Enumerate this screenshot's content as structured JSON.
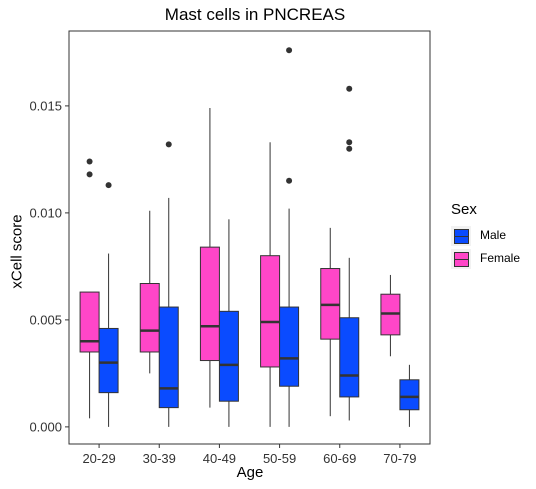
{
  "chart_data": {
    "type": "boxplot",
    "title": "Mast cells in PNCREAS",
    "xlabel": "Age",
    "ylabel": "xCell score",
    "categories": [
      "20-29",
      "30-39",
      "40-49",
      "50-59",
      "60-69",
      "70-79"
    ],
    "ylim": [
      -0.0008,
      0.0185
    ],
    "yticks": [
      0.0,
      0.005,
      0.01,
      0.015
    ],
    "ytick_labels": [
      "0.000",
      "0.005",
      "0.010",
      "0.015"
    ],
    "grid": false,
    "legend": {
      "title": "Sex",
      "placement": "right",
      "entries": [
        {
          "label": "Male",
          "color": "#0a4bff"
        },
        {
          "label": "Female",
          "color": "#ff46c8"
        }
      ]
    },
    "series": [
      {
        "name": "Female",
        "color": "#ff46c8",
        "boxes": [
          {
            "category": "20-29",
            "min": 0.0004,
            "q1": 0.0035,
            "median": 0.004,
            "q3": 0.0063,
            "max": 0.0063,
            "outliers": [
              0.0118,
              0.0124
            ]
          },
          {
            "category": "30-39",
            "min": 0.0025,
            "q1": 0.0035,
            "median": 0.0045,
            "q3": 0.0067,
            "max": 0.0101,
            "outliers": []
          },
          {
            "category": "40-49",
            "min": 0.0009,
            "q1": 0.0031,
            "median": 0.0047,
            "q3": 0.0084,
            "max": 0.0149,
            "outliers": []
          },
          {
            "category": "50-59",
            "min": 0.0,
            "q1": 0.0028,
            "median": 0.0049,
            "q3": 0.008,
            "max": 0.0133,
            "outliers": []
          },
          {
            "category": "60-69",
            "min": 0.0005,
            "q1": 0.0041,
            "median": 0.0057,
            "q3": 0.0074,
            "max": 0.0093,
            "outliers": []
          },
          {
            "category": "70-79",
            "min": 0.0033,
            "q1": 0.0043,
            "median": 0.0053,
            "q3": 0.0062,
            "max": 0.0071,
            "outliers": []
          }
        ]
      },
      {
        "name": "Male",
        "color": "#0a4bff",
        "boxes": [
          {
            "category": "20-29",
            "min": 0.0,
            "q1": 0.0016,
            "median": 0.003,
            "q3": 0.0046,
            "max": 0.0081,
            "outliers": [
              0.0113
            ]
          },
          {
            "category": "30-39",
            "min": 0.0,
            "q1": 0.0009,
            "median": 0.0018,
            "q3": 0.0056,
            "max": 0.0107,
            "outliers": [
              0.0132
            ]
          },
          {
            "category": "40-49",
            "min": 0.0,
            "q1": 0.0012,
            "median": 0.0029,
            "q3": 0.0054,
            "max": 0.0097,
            "outliers": []
          },
          {
            "category": "50-59",
            "min": 0.0,
            "q1": 0.0019,
            "median": 0.0032,
            "q3": 0.0056,
            "max": 0.0102,
            "outliers": [
              0.0115,
              0.0176
            ]
          },
          {
            "category": "60-69",
            "min": 0.0003,
            "q1": 0.0014,
            "median": 0.0024,
            "q3": 0.0051,
            "max": 0.0079,
            "outliers": [
              0.0158,
              0.013,
              0.0133
            ]
          },
          {
            "category": "70-79",
            "min": 0.0,
            "q1": 0.0008,
            "median": 0.0014,
            "q3": 0.0022,
            "max": 0.0029,
            "outliers": []
          }
        ]
      }
    ]
  }
}
